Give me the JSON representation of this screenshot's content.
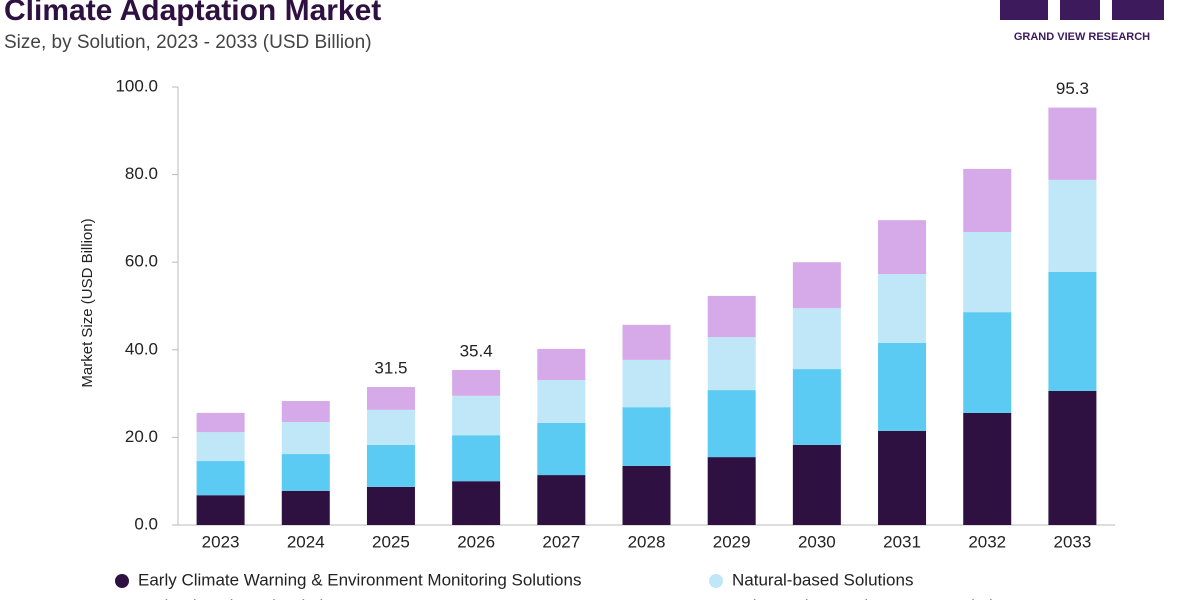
{
  "chart_data": {
    "type": "stacked-bar",
    "title": "Climate Adaptation Market",
    "subtitle": "Size, by Solution, 2023 - 2033 (USD Billion)",
    "brand": "GRAND VIEW RESEARCH",
    "y_label": "Market Size (USD Billion)",
    "categories": [
      "2023",
      "2024",
      "2025",
      "2026",
      "2027",
      "2028",
      "2029",
      "2030",
      "2031",
      "2032",
      "2033"
    ],
    "series": [
      {
        "name": "Early Climate Warning & Environment Monitoring Solutions",
        "color": "#2e1041",
        "values": [
          6.8,
          7.8,
          8.7,
          10.0,
          11.4,
          13.5,
          15.5,
          18.3,
          21.5,
          25.6,
          30.6
        ]
      },
      {
        "name": "Technology-based Solutions",
        "color": "#5ccbf3",
        "values": [
          7.8,
          8.4,
          9.6,
          10.5,
          11.9,
          13.4,
          15.3,
          17.3,
          20.1,
          23.0,
          27.2
        ]
      },
      {
        "name": "Natural-based Solutions",
        "color": "#bfe7f8",
        "values": [
          6.6,
          7.3,
          8.0,
          9.0,
          9.8,
          10.8,
          12.1,
          13.9,
          15.7,
          18.3,
          21.0
        ]
      },
      {
        "name": "Enhanced Natural Resource Solutions",
        "color": "#d6a9e8",
        "values": [
          4.4,
          4.8,
          5.2,
          5.9,
          7.1,
          8.0,
          9.4,
          10.5,
          12.3,
          14.4,
          16.5
        ]
      }
    ],
    "annotations": [
      {
        "category": "2025",
        "value": 31.5
      },
      {
        "category": "2026",
        "value": 35.4
      },
      {
        "category": "2033",
        "value": 95.3
      }
    ],
    "ylim": [
      0,
      100
    ],
    "yticks": [
      {
        "value": 0,
        "label": "0.0"
      },
      {
        "value": 20,
        "label": "20.0"
      },
      {
        "value": 40,
        "label": "40.0"
      },
      {
        "value": 60,
        "label": "60.0"
      },
      {
        "value": 80,
        "label": "80.0"
      },
      {
        "value": 100,
        "label": "100.0"
      }
    ]
  }
}
